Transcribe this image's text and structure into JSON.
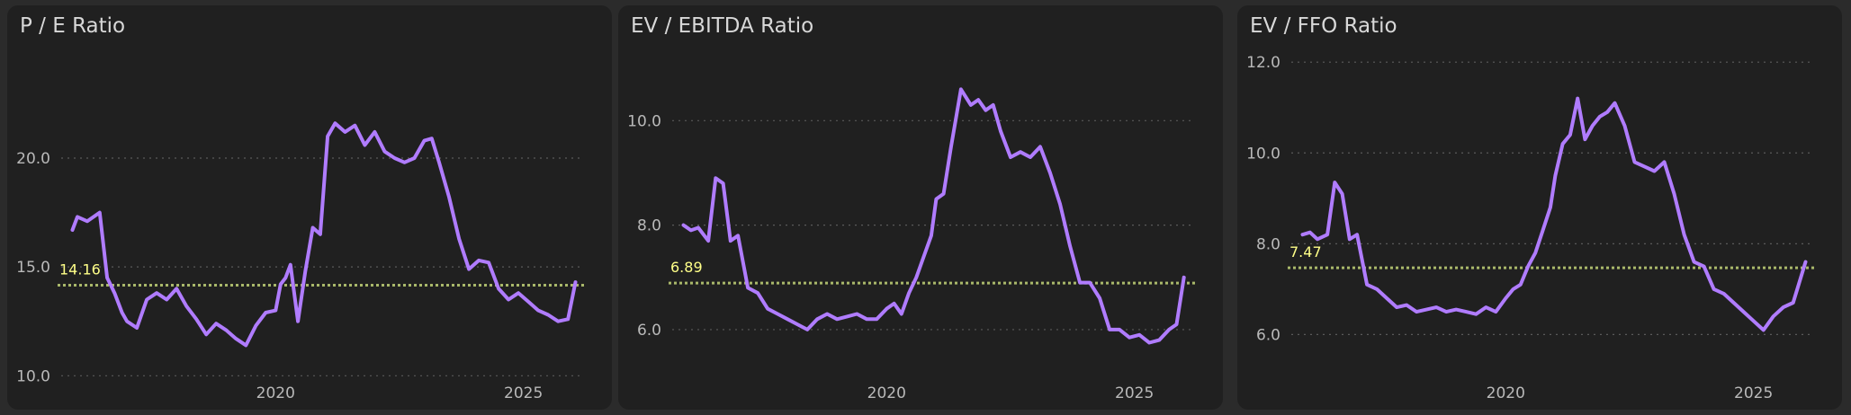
{
  "colors": {
    "line": "#b07cff",
    "average": "#a9b86a",
    "average_label": "#ffff88",
    "grid": "#5a5a5a",
    "panel_bg": "#202020",
    "page_bg": "#2b2b2b"
  },
  "chart_data": [
    {
      "type": "line",
      "title": "P / E Ratio",
      "xlabel": "",
      "ylabel": "",
      "xlim": [
        2015.6,
        2026.35
      ],
      "ylim": [
        9.6,
        25.2
      ],
      "yticks": [
        10.0,
        15.0,
        20.0
      ],
      "ytick_labels": [
        "10.0",
        "15.0",
        "20.0"
      ],
      "xticks": [
        2020,
        2025
      ],
      "xtick_labels": [
        "2020",
        "2025"
      ],
      "grid": true,
      "average": 14.16,
      "average_label": "14.16",
      "x": [
        2015.9,
        2016.0,
        2016.2,
        2016.45,
        2016.6,
        2016.75,
        2016.9,
        2017.0,
        2017.2,
        2017.4,
        2017.6,
        2017.8,
        2018.0,
        2018.2,
        2018.4,
        2018.6,
        2018.8,
        2019.0,
        2019.2,
        2019.4,
        2019.6,
        2019.8,
        2020.0,
        2020.1,
        2020.2,
        2020.3,
        2020.45,
        2020.6,
        2020.75,
        2020.9,
        2021.05,
        2021.2,
        2021.4,
        2021.6,
        2021.8,
        2022.0,
        2022.2,
        2022.4,
        2022.6,
        2022.8,
        2023.0,
        2023.15,
        2023.3,
        2023.5,
        2023.7,
        2023.9,
        2024.1,
        2024.3,
        2024.5,
        2024.7,
        2024.9,
        2025.1,
        2025.3,
        2025.5,
        2025.7,
        2025.9,
        2026.05
      ],
      "y": [
        16.7,
        17.3,
        17.1,
        17.5,
        14.5,
        13.8,
        12.9,
        12.5,
        12.2,
        13.5,
        13.8,
        13.5,
        14.0,
        13.2,
        12.6,
        11.9,
        12.4,
        12.1,
        11.7,
        11.4,
        12.3,
        12.9,
        13.0,
        14.2,
        14.5,
        15.1,
        12.5,
        14.8,
        16.8,
        16.5,
        21.0,
        21.6,
        21.2,
        21.5,
        20.6,
        21.2,
        20.3,
        20.0,
        19.8,
        20.0,
        20.8,
        20.9,
        19.8,
        18.2,
        16.3,
        14.9,
        15.3,
        15.2,
        14.0,
        13.5,
        13.8,
        13.4,
        13.0,
        12.8,
        12.5,
        12.6,
        14.3
      ]
    },
    {
      "type": "line",
      "title": "EV / EBITDA Ratio",
      "xlabel": "",
      "ylabel": "",
      "xlim": [
        2015.6,
        2026.35
      ],
      "ylim": [
        4.95,
        11.45
      ],
      "yticks": [
        6.0,
        8.0,
        10.0
      ],
      "ytick_labels": [
        "6.0",
        "8.0",
        "10.0"
      ],
      "xticks": [
        2020,
        2025
      ],
      "xtick_labels": [
        "2020",
        "2025"
      ],
      "grid": true,
      "average": 6.89,
      "average_label": "6.89",
      "x": [
        2015.9,
        2016.05,
        2016.2,
        2016.4,
        2016.55,
        2016.7,
        2016.85,
        2017.0,
        2017.2,
        2017.4,
        2017.6,
        2017.8,
        2018.0,
        2018.2,
        2018.4,
        2018.6,
        2018.8,
        2019.0,
        2019.2,
        2019.4,
        2019.6,
        2019.8,
        2020.0,
        2020.15,
        2020.3,
        2020.45,
        2020.6,
        2020.75,
        2020.9,
        2021.0,
        2021.15,
        2021.3,
        2021.5,
        2021.7,
        2021.85,
        2022.0,
        2022.15,
        2022.3,
        2022.5,
        2022.7,
        2022.9,
        2023.1,
        2023.3,
        2023.5,
        2023.7,
        2023.9,
        2024.1,
        2024.3,
        2024.5,
        2024.7,
        2024.9,
        2025.1,
        2025.3,
        2025.5,
        2025.7,
        2025.85,
        2026.0
      ],
      "y": [
        8.0,
        7.9,
        7.95,
        7.7,
        8.9,
        8.8,
        7.7,
        7.8,
        6.8,
        6.7,
        6.4,
        6.3,
        6.2,
        6.1,
        6.0,
        6.2,
        6.3,
        6.2,
        6.25,
        6.3,
        6.2,
        6.2,
        6.4,
        6.5,
        6.3,
        6.7,
        7.0,
        7.4,
        7.8,
        8.5,
        8.6,
        9.5,
        10.6,
        10.3,
        10.4,
        10.2,
        10.3,
        9.8,
        9.3,
        9.4,
        9.3,
        9.5,
        9.0,
        8.4,
        7.6,
        6.9,
        6.9,
        6.6,
        6.0,
        6.0,
        5.85,
        5.9,
        5.75,
        5.8,
        6.0,
        6.1,
        7.0
      ]
    },
    {
      "type": "line",
      "title": "EV / FFO Ratio",
      "xlabel": "",
      "ylabel": "",
      "xlim": [
        2015.6,
        2026.35
      ],
      "ylim": [
        4.9,
        12.38
      ],
      "yticks": [
        6.0,
        8.0,
        10.0,
        12.0
      ],
      "ytick_labels": [
        "6.0",
        "8.0",
        "10.0",
        "12.0"
      ],
      "xticks": [
        2020,
        2025
      ],
      "xtick_labels": [
        "2020",
        "2025"
      ],
      "grid": true,
      "average": 7.47,
      "average_label": "7.47",
      "x": [
        2015.9,
        2016.05,
        2016.2,
        2016.4,
        2016.55,
        2016.7,
        2016.85,
        2017.0,
        2017.2,
        2017.4,
        2017.6,
        2017.8,
        2018.0,
        2018.2,
        2018.4,
        2018.6,
        2018.8,
        2019.0,
        2019.2,
        2019.4,
        2019.6,
        2019.8,
        2020.0,
        2020.15,
        2020.3,
        2020.45,
        2020.6,
        2020.75,
        2020.9,
        2021.0,
        2021.15,
        2021.3,
        2021.45,
        2021.6,
        2021.75,
        2021.9,
        2022.05,
        2022.2,
        2022.4,
        2022.6,
        2022.8,
        2023.0,
        2023.2,
        2023.4,
        2023.6,
        2023.8,
        2024.0,
        2024.2,
        2024.4,
        2024.6,
        2024.8,
        2025.0,
        2025.2,
        2025.4,
        2025.6,
        2025.8,
        2026.05
      ],
      "y": [
        8.2,
        8.25,
        8.1,
        8.2,
        9.35,
        9.1,
        8.1,
        8.2,
        7.1,
        7.0,
        6.8,
        6.6,
        6.65,
        6.5,
        6.55,
        6.6,
        6.5,
        6.55,
        6.5,
        6.45,
        6.6,
        6.5,
        6.8,
        7.0,
        7.1,
        7.5,
        7.8,
        8.3,
        8.8,
        9.5,
        10.2,
        10.4,
        11.2,
        10.3,
        10.6,
        10.8,
        10.9,
        11.1,
        10.6,
        9.8,
        9.7,
        9.6,
        9.8,
        9.1,
        8.2,
        7.6,
        7.5,
        7.0,
        6.9,
        6.7,
        6.5,
        6.3,
        6.1,
        6.4,
        6.6,
        6.7,
        7.6
      ]
    }
  ]
}
